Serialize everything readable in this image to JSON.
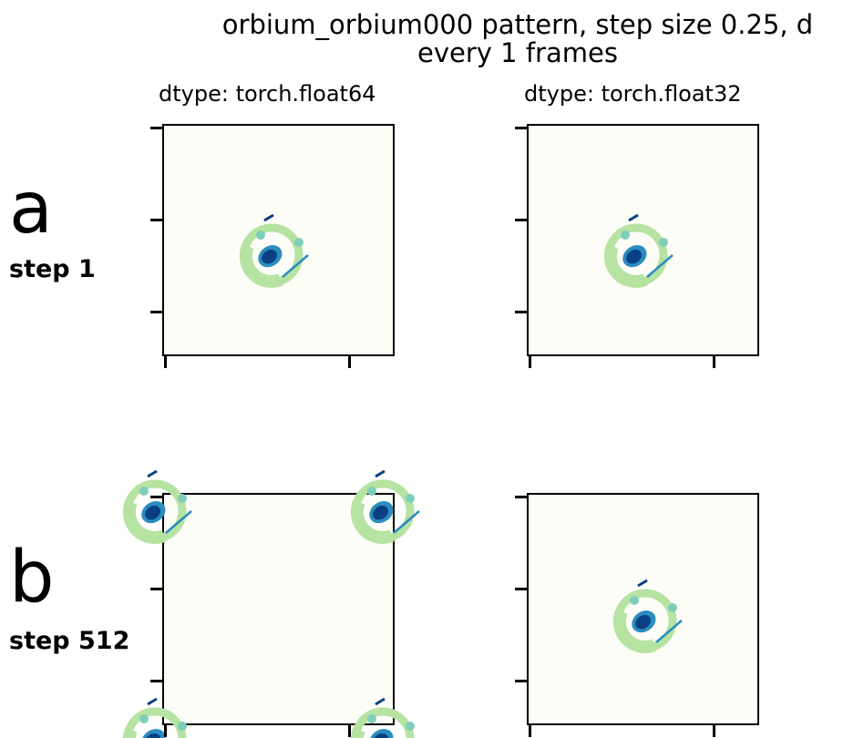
{
  "chart_data": {
    "type": "heatmap",
    "title": "orbium_orbium000 pattern, step size 0.25, d\nevery 1 frames",
    "title_line1": "orbium_orbium000 pattern, step size 0.25, d",
    "title_line2": "every 1 frames",
    "colormap": "GnBu",
    "columns": [
      "dtype: torch.float64",
      "dtype: torch.float32"
    ],
    "rows": [
      {
        "letter": "a",
        "label": "step 1"
      },
      {
        "letter": "b",
        "label": "step 512"
      }
    ],
    "panels": [
      {
        "row": 0,
        "col": 0,
        "pattern": "orbium at center",
        "wrapped": false
      },
      {
        "row": 0,
        "col": 1,
        "pattern": "orbium at center",
        "wrapped": false
      },
      {
        "row": 1,
        "col": 0,
        "pattern": "orbium wrapped across corners",
        "wrapped": true
      },
      {
        "row": 1,
        "col": 1,
        "pattern": "orbium slightly moved toward lower-right",
        "wrapped": false
      }
    ],
    "grid": false,
    "tick_labels": false
  },
  "colors": {
    "background": "#fdfdf8",
    "ring_light": "#b6e3a2",
    "ring_mid": "#7fcdbb",
    "core_dark": "#084081",
    "core_mid": "#2b8cbe"
  }
}
